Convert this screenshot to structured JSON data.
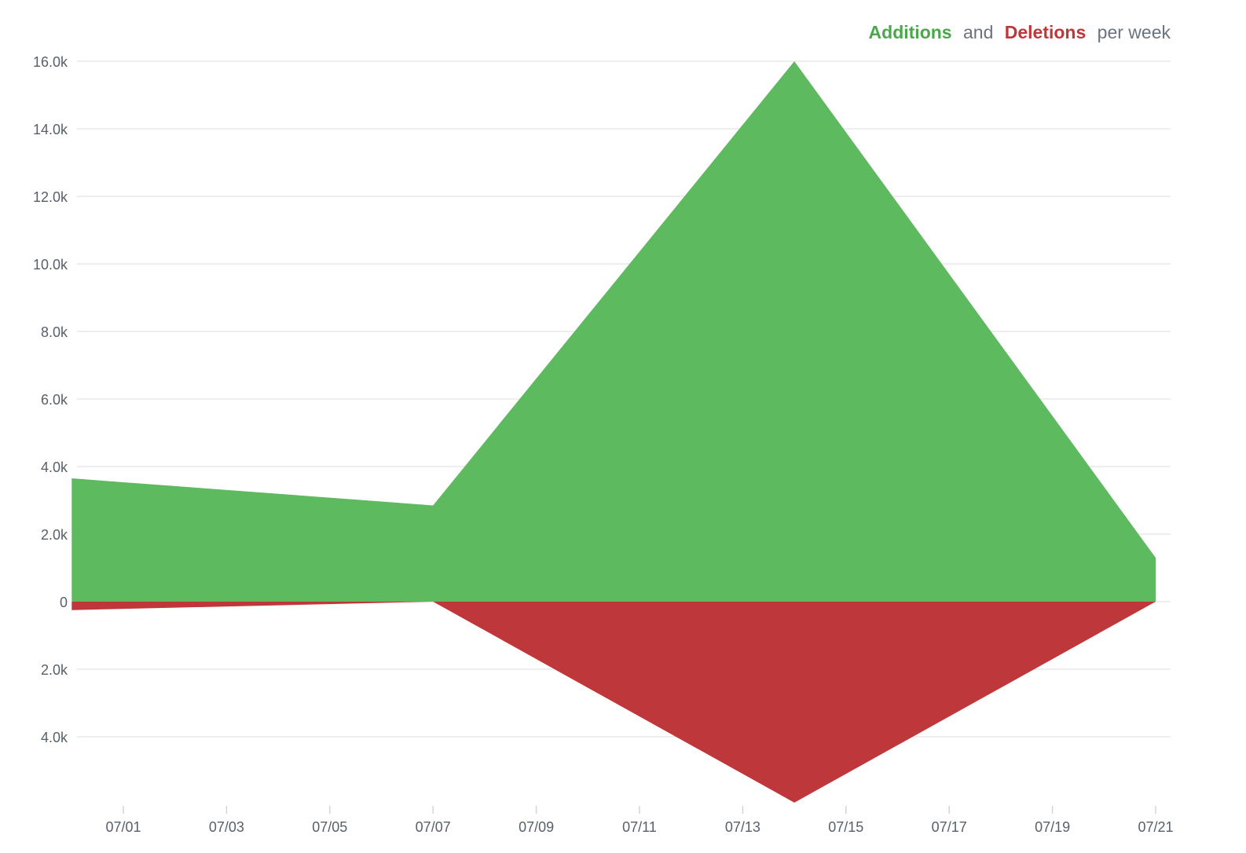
{
  "legend": {
    "additions_label": "Additions",
    "and_label": "and",
    "deletions_label": "Deletions",
    "suffix_label": "per week"
  },
  "colors": {
    "additions": "#5eba5e",
    "deletions": "#be373a",
    "legend_additions": "#4aa84b",
    "legend_deletions": "#c0373a"
  },
  "chart_data": {
    "type": "area",
    "x_axis_type": "date",
    "x": [
      "06/30",
      "07/07",
      "07/14",
      "07/21"
    ],
    "series": [
      {
        "name": "Additions",
        "values": [
          3650,
          2850,
          16000,
          1300
        ]
      },
      {
        "name": "Deletions",
        "values": [
          250,
          0,
          5950,
          0
        ]
      }
    ],
    "deletions_plotted_below_zero": true,
    "y_tick_labels": [
      "16.0k",
      "14.0k",
      "12.0k",
      "10.0k",
      "8.0k",
      "6.0k",
      "4.0k",
      "2.0k",
      "0",
      "2.0k",
      "4.0k"
    ],
    "y_tick_values": [
      16000,
      14000,
      12000,
      10000,
      8000,
      6000,
      4000,
      2000,
      0,
      -2000,
      -4000
    ],
    "x_tick_labels": [
      "07/01",
      "07/03",
      "07/05",
      "07/07",
      "07/09",
      "07/11",
      "07/13",
      "07/15",
      "07/17",
      "07/19",
      "07/21"
    ],
    "ylim": [
      -5950,
      16000
    ],
    "grid": true,
    "legend_position": "top-right"
  }
}
